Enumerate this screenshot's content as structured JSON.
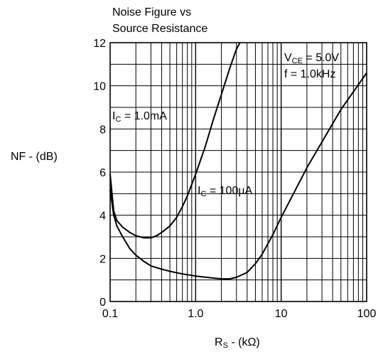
{
  "chart_data": {
    "type": "line",
    "title_line1": "Noise Figure vs",
    "title_line2": "Source Resistance",
    "ylabel": "NF - (dB)",
    "xlabel_main": "R",
    "xlabel_sub": "S",
    "xlabel_unit": " - (kΩ)",
    "x_scale": "log",
    "xlim": [
      0.1,
      100
    ],
    "ylim": [
      0,
      12
    ],
    "grid": true,
    "x_ticks": [
      {
        "value": 0.1,
        "label": "0.1"
      },
      {
        "value": 1,
        "label": "1.0"
      },
      {
        "value": 10,
        "label": "10"
      },
      {
        "value": 100,
        "label": "100"
      }
    ],
    "y_ticks": [
      {
        "value": 0,
        "label": "0"
      },
      {
        "value": 2,
        "label": "2"
      },
      {
        "value": 4,
        "label": "4"
      },
      {
        "value": 6,
        "label": "6"
      },
      {
        "value": 8,
        "label": "8"
      },
      {
        "value": 10,
        "label": "10"
      },
      {
        "value": 12,
        "label": "12"
      }
    ],
    "conditions": {
      "vce_main": "V",
      "vce_sub": "CE",
      "vce_value": " = 5.0V",
      "freq": "f = 1.0kHz"
    },
    "series": [
      {
        "label_main": "I",
        "label_sub": "C",
        "label_value": " = 1.0mA",
        "points": [
          [
            0.1,
            5.9
          ],
          [
            0.11,
            4.2
          ],
          [
            0.12,
            3.75
          ],
          [
            0.14,
            3.45
          ],
          [
            0.17,
            3.2
          ],
          [
            0.2,
            3.05
          ],
          [
            0.25,
            2.95
          ],
          [
            0.3,
            2.95
          ],
          [
            0.35,
            3.05
          ],
          [
            0.4,
            3.2
          ],
          [
            0.5,
            3.5
          ],
          [
            0.6,
            3.9
          ],
          [
            0.7,
            4.4
          ],
          [
            0.8,
            4.9
          ],
          [
            1.0,
            5.9
          ],
          [
            1.3,
            7.2
          ],
          [
            1.6,
            8.4
          ],
          [
            2.0,
            9.6
          ],
          [
            2.5,
            10.8
          ],
          [
            3.0,
            11.7
          ],
          [
            3.3,
            12.0
          ]
        ]
      },
      {
        "label_main": "I",
        "label_sub": "C",
        "label_value": " = 100µA",
        "points": [
          [
            0.1,
            5.2
          ],
          [
            0.11,
            4.0
          ],
          [
            0.12,
            3.5
          ],
          [
            0.14,
            3.0
          ],
          [
            0.17,
            2.45
          ],
          [
            0.2,
            2.15
          ],
          [
            0.25,
            1.85
          ],
          [
            0.3,
            1.65
          ],
          [
            0.4,
            1.5
          ],
          [
            0.5,
            1.4
          ],
          [
            0.7,
            1.28
          ],
          [
            1.0,
            1.18
          ],
          [
            1.5,
            1.1
          ],
          [
            2.0,
            1.05
          ],
          [
            2.5,
            1.05
          ],
          [
            3.0,
            1.12
          ],
          [
            4.0,
            1.35
          ],
          [
            5.0,
            1.75
          ],
          [
            6.0,
            2.2
          ],
          [
            8.0,
            3.1
          ],
          [
            10.0,
            3.9
          ],
          [
            20.0,
            6.2
          ],
          [
            50.0,
            8.9
          ],
          [
            100.0,
            10.6
          ]
        ]
      }
    ]
  }
}
